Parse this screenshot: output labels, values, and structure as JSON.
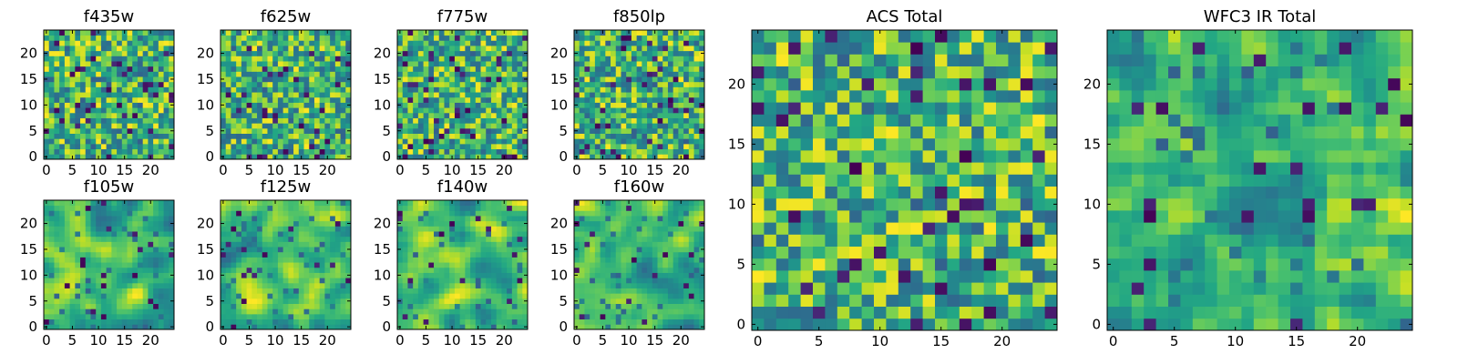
{
  "figure": {
    "description_note": "",
    "colormap": "viridis",
    "colormap_stops": [
      "#440154",
      "#3b528b",
      "#21918c",
      "#5ec962",
      "#fde725"
    ]
  },
  "chart_data": [
    {
      "type": "heatmap",
      "title": "f435w",
      "xticks": [
        0,
        5,
        10,
        15,
        20
      ],
      "yticks": [
        0,
        5,
        10,
        15,
        20
      ],
      "xlim": [
        0,
        24
      ],
      "ylim": [
        0,
        24
      ],
      "grid_size": 25,
      "pixel_scale": 1,
      "smoothness": 0,
      "seed": 11,
      "dark_fraction": 0.06
    },
    {
      "type": "heatmap",
      "title": "f625w",
      "xticks": [
        0,
        5,
        10,
        15,
        20
      ],
      "yticks": [
        0,
        5,
        10,
        15,
        20
      ],
      "xlim": [
        0,
        24
      ],
      "ylim": [
        0,
        24
      ],
      "grid_size": 25,
      "pixel_scale": 1,
      "smoothness": 0,
      "seed": 23,
      "dark_fraction": 0.05
    },
    {
      "type": "heatmap",
      "title": "f775w",
      "xticks": [
        0,
        5,
        10,
        15,
        20
      ],
      "yticks": [
        0,
        5,
        10,
        15,
        20
      ],
      "xlim": [
        0,
        24
      ],
      "ylim": [
        0,
        24
      ],
      "grid_size": 25,
      "pixel_scale": 1,
      "smoothness": 0,
      "seed": 37,
      "dark_fraction": 0.05
    },
    {
      "type": "heatmap",
      "title": "f850lp",
      "xticks": [
        0,
        5,
        10,
        15,
        20
      ],
      "yticks": [
        0,
        5,
        10,
        15,
        20
      ],
      "xlim": [
        0,
        24
      ],
      "ylim": [
        0,
        24
      ],
      "grid_size": 25,
      "pixel_scale": 1,
      "smoothness": 0,
      "seed": 41,
      "dark_fraction": 0.06
    },
    {
      "type": "heatmap",
      "title": "f105w",
      "xticks": [
        0,
        5,
        10,
        15,
        20
      ],
      "yticks": [
        0,
        5,
        10,
        15,
        20
      ],
      "xlim": [
        0,
        24
      ],
      "ylim": [
        0,
        24
      ],
      "grid_size": 25,
      "pixel_scale": 1,
      "smoothness": 2,
      "seed": 53,
      "dark_fraction": 0.03
    },
    {
      "type": "heatmap",
      "title": "f125w",
      "xticks": [
        0,
        5,
        10,
        15,
        20
      ],
      "yticks": [
        0,
        5,
        10,
        15,
        20
      ],
      "xlim": [
        0,
        24
      ],
      "ylim": [
        0,
        24
      ],
      "grid_size": 25,
      "pixel_scale": 1,
      "smoothness": 2,
      "seed": 67,
      "dark_fraction": 0.03
    },
    {
      "type": "heatmap",
      "title": "f140w",
      "xticks": [
        0,
        5,
        10,
        15,
        20
      ],
      "yticks": [
        0,
        5,
        10,
        15,
        20
      ],
      "xlim": [
        0,
        24
      ],
      "ylim": [
        0,
        24
      ],
      "grid_size": 25,
      "pixel_scale": 1,
      "smoothness": 2,
      "seed": 71,
      "dark_fraction": 0.03
    },
    {
      "type": "heatmap",
      "title": "f160w",
      "xticks": [
        0,
        5,
        10,
        15,
        20
      ],
      "yticks": [
        0,
        5,
        10,
        15,
        20
      ],
      "xlim": [
        0,
        24
      ],
      "ylim": [
        0,
        24
      ],
      "grid_size": 25,
      "pixel_scale": 1,
      "smoothness": 2,
      "seed": 83,
      "dark_fraction": 0.03
    },
    {
      "type": "heatmap",
      "title": "ACS Total",
      "xticks": [
        0,
        5,
        10,
        15,
        20
      ],
      "yticks": [
        0,
        5,
        10,
        15,
        20
      ],
      "xlim": [
        0,
        24
      ],
      "ylim": [
        0,
        24
      ],
      "grid_size": 25,
      "pixel_scale": 1,
      "smoothness": 0,
      "seed": 97,
      "dark_fraction": 0.04
    },
    {
      "type": "heatmap",
      "title": "WFC3 IR Total",
      "xticks": [
        0,
        5,
        10,
        15,
        20
      ],
      "yticks": [
        0,
        5,
        10,
        15,
        20
      ],
      "xlim": [
        0,
        24
      ],
      "ylim": [
        0,
        24
      ],
      "grid_size": 25,
      "pixel_scale": 1,
      "smoothness": 1,
      "seed": 109,
      "dark_fraction": 0.03
    }
  ]
}
